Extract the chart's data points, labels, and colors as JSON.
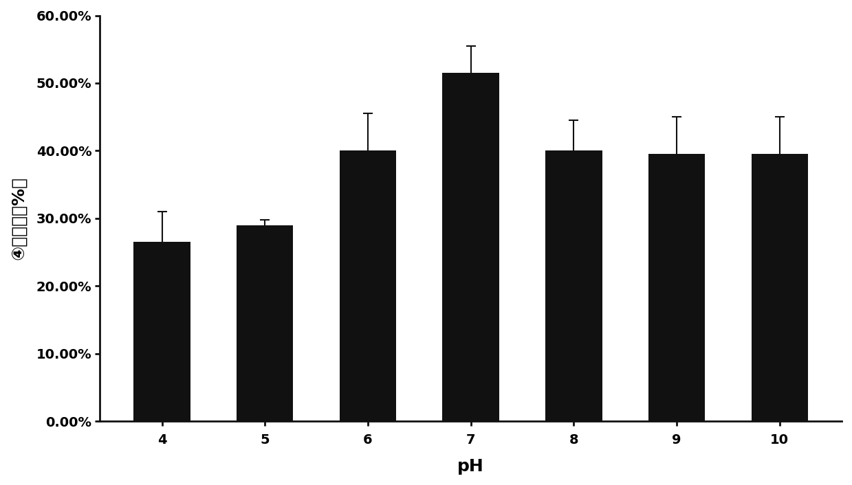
{
  "categories": [
    "4",
    "5",
    "6",
    "7",
    "8",
    "9",
    "10"
  ],
  "values": [
    26.5,
    29.0,
    40.0,
    51.5,
    40.0,
    39.5,
    39.5
  ],
  "errors": [
    4.5,
    0.8,
    5.5,
    4.0,
    4.5,
    5.5,
    5.5
  ],
  "bar_color": "#111111",
  "xlabel": "pH",
  "ylabel": "④降解率（%）",
  "ylim": [
    0,
    60
  ],
  "ytick_values": [
    0,
    10,
    20,
    30,
    40,
    50,
    60
  ],
  "ytick_labels": [
    "0.00%",
    "10.00%",
    "20.00%",
    "30.00%",
    "40.00%",
    "50.00%",
    "60.00%"
  ],
  "bar_width": 0.55,
  "capsize": 5,
  "ecolor": "#111111",
  "elinewidth": 1.5,
  "label_fontsize": 18,
  "tick_fontsize": 14,
  "background_color": "#ffffff"
}
